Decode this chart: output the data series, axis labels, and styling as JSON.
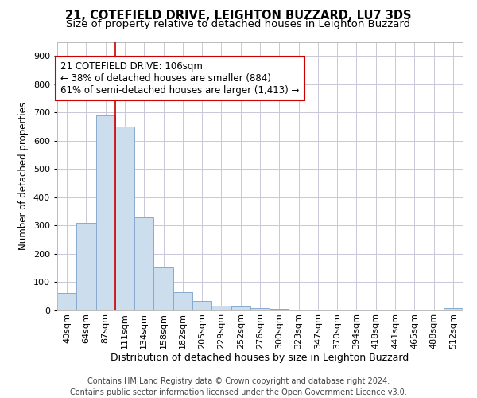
{
  "title1": "21, COTEFIELD DRIVE, LEIGHTON BUZZARD, LU7 3DS",
  "title2": "Size of property relative to detached houses in Leighton Buzzard",
  "xlabel": "Distribution of detached houses by size in Leighton Buzzard",
  "ylabel": "Number of detached properties",
  "footnote": "Contains HM Land Registry data © Crown copyright and database right 2024.\nContains public sector information licensed under the Open Government Licence v3.0.",
  "bar_labels": [
    "40sqm",
    "64sqm",
    "87sqm",
    "111sqm",
    "134sqm",
    "158sqm",
    "182sqm",
    "205sqm",
    "229sqm",
    "252sqm",
    "276sqm",
    "300sqm",
    "323sqm",
    "347sqm",
    "370sqm",
    "394sqm",
    "418sqm",
    "441sqm",
    "465sqm",
    "488sqm",
    "512sqm"
  ],
  "bar_values": [
    62,
    310,
    690,
    650,
    330,
    153,
    65,
    33,
    17,
    13,
    8,
    5,
    1,
    0,
    0,
    0,
    0,
    0,
    0,
    0,
    8
  ],
  "bar_color": "#ccdded",
  "bar_edgecolor": "#88aacc",
  "vline_x": 3.0,
  "annotation_text": "21 COTEFIELD DRIVE: 106sqm\n← 38% of detached houses are smaller (884)\n61% of semi-detached houses are larger (1,413) →",
  "annotation_box_color": "#ffffff",
  "annotation_box_edgecolor": "#cc0000",
  "vline_color": "#cc0000",
  "ylim": [
    0,
    950
  ],
  "yticks": [
    0,
    100,
    200,
    300,
    400,
    500,
    600,
    700,
    800,
    900
  ],
  "background_color": "#ffffff",
  "grid_color": "#c8c8d8",
  "title1_fontsize": 10.5,
  "title2_fontsize": 9.5,
  "xlabel_fontsize": 9,
  "ylabel_fontsize": 8.5,
  "tick_fontsize": 8,
  "annotation_fontsize": 8.5,
  "footnote_fontsize": 7
}
